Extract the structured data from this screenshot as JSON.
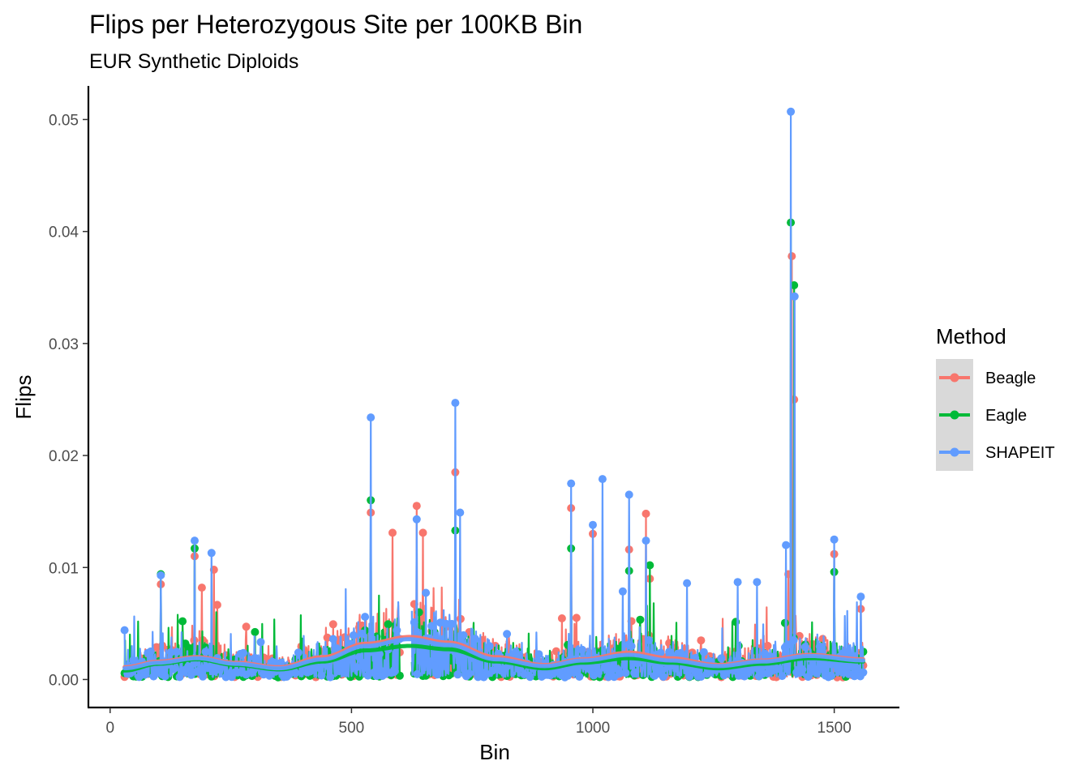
{
  "chart_data": {
    "type": "line",
    "title": "Flips per Heterozygous Site per 100KB Bin",
    "subtitle": "EUR Synthetic Diploids",
    "xlabel": "Bin",
    "ylabel": "Flips",
    "xlim": [
      -45,
      1635
    ],
    "ylim": [
      -0.0025,
      0.053
    ],
    "x_ticks": [
      0,
      500,
      1000,
      1500
    ],
    "y_ticks": [
      0.0,
      0.01,
      0.02,
      0.03,
      0.04,
      0.05
    ],
    "x_tick_labels": [
      "0",
      "500",
      "1000",
      "1500"
    ],
    "y_tick_labels": [
      "0.00",
      "0.01",
      "0.02",
      "0.03",
      "0.04",
      "0.05"
    ],
    "grid": false,
    "legend": {
      "title": "Method",
      "position": "right",
      "entries": [
        "Beagle",
        "Eagle",
        "SHAPEIT"
      ]
    },
    "x_range": [
      30,
      1560
    ],
    "gap_range": [
      600,
      625
    ],
    "notes": "Each series is a dense per-bin line+point trace with a smoothed trend line. Notable peaks listed below.",
    "series": [
      {
        "name": "Beagle",
        "color": "#F8766D",
        "peaks": [
          {
            "x": 105,
            "y": 0.0085
          },
          {
            "x": 175,
            "y": 0.011
          },
          {
            "x": 190,
            "y": 0.0082
          },
          {
            "x": 215,
            "y": 0.0098
          },
          {
            "x": 540,
            "y": 0.0149
          },
          {
            "x": 585,
            "y": 0.0131
          },
          {
            "x": 635,
            "y": 0.0155
          },
          {
            "x": 648,
            "y": 0.0131
          },
          {
            "x": 715,
            "y": 0.0185
          },
          {
            "x": 955,
            "y": 0.0153
          },
          {
            "x": 1000,
            "y": 0.013
          },
          {
            "x": 1075,
            "y": 0.0116
          },
          {
            "x": 1110,
            "y": 0.0148
          },
          {
            "x": 1118,
            "y": 0.009
          },
          {
            "x": 1405,
            "y": 0.0094
          },
          {
            "x": 1412,
            "y": 0.0378
          },
          {
            "x": 1417,
            "y": 0.025
          },
          {
            "x": 1500,
            "y": 0.0112
          },
          {
            "x": 1555,
            "y": 0.0063
          }
        ],
        "smooth": [
          {
            "x": 30,
            "y": 0.0011
          },
          {
            "x": 100,
            "y": 0.0016
          },
          {
            "x": 180,
            "y": 0.002
          },
          {
            "x": 260,
            "y": 0.0015
          },
          {
            "x": 350,
            "y": 0.0011
          },
          {
            "x": 440,
            "y": 0.002
          },
          {
            "x": 530,
            "y": 0.0032
          },
          {
            "x": 620,
            "y": 0.0038
          },
          {
            "x": 700,
            "y": 0.0033
          },
          {
            "x": 800,
            "y": 0.002
          },
          {
            "x": 900,
            "y": 0.0013
          },
          {
            "x": 980,
            "y": 0.0018
          },
          {
            "x": 1075,
            "y": 0.0024
          },
          {
            "x": 1160,
            "y": 0.0019
          },
          {
            "x": 1260,
            "y": 0.0013
          },
          {
            "x": 1350,
            "y": 0.0017
          },
          {
            "x": 1450,
            "y": 0.0022
          },
          {
            "x": 1560,
            "y": 0.0018
          }
        ]
      },
      {
        "name": "Eagle",
        "color": "#00BA38",
        "peaks": [
          {
            "x": 105,
            "y": 0.0094
          },
          {
            "x": 175,
            "y": 0.0117
          },
          {
            "x": 540,
            "y": 0.016
          },
          {
            "x": 640,
            "y": 0.006
          },
          {
            "x": 715,
            "y": 0.0133
          },
          {
            "x": 955,
            "y": 0.0117
          },
          {
            "x": 1075,
            "y": 0.0097
          },
          {
            "x": 1118,
            "y": 0.0102
          },
          {
            "x": 1410,
            "y": 0.0408
          },
          {
            "x": 1417,
            "y": 0.0352
          },
          {
            "x": 1500,
            "y": 0.0096
          }
        ],
        "smooth": [
          {
            "x": 30,
            "y": 0.0008
          },
          {
            "x": 100,
            "y": 0.0014
          },
          {
            "x": 180,
            "y": 0.0018
          },
          {
            "x": 260,
            "y": 0.0013
          },
          {
            "x": 350,
            "y": 0.0009
          },
          {
            "x": 440,
            "y": 0.0016
          },
          {
            "x": 530,
            "y": 0.0026
          },
          {
            "x": 620,
            "y": 0.003
          },
          {
            "x": 700,
            "y": 0.0027
          },
          {
            "x": 800,
            "y": 0.0016
          },
          {
            "x": 900,
            "y": 0.001
          },
          {
            "x": 980,
            "y": 0.0015
          },
          {
            "x": 1075,
            "y": 0.0019
          },
          {
            "x": 1160,
            "y": 0.0015
          },
          {
            "x": 1260,
            "y": 0.001
          },
          {
            "x": 1350,
            "y": 0.0014
          },
          {
            "x": 1450,
            "y": 0.0019
          },
          {
            "x": 1560,
            "y": 0.0016
          }
        ]
      },
      {
        "name": "SHAPEIT",
        "color": "#619CFF",
        "peaks": [
          {
            "x": 30,
            "y": 0.0044
          },
          {
            "x": 105,
            "y": 0.0093
          },
          {
            "x": 175,
            "y": 0.0124
          },
          {
            "x": 210,
            "y": 0.0113
          },
          {
            "x": 540,
            "y": 0.0234
          },
          {
            "x": 635,
            "y": 0.0143
          },
          {
            "x": 715,
            "y": 0.0247
          },
          {
            "x": 725,
            "y": 0.0149
          },
          {
            "x": 955,
            "y": 0.0175
          },
          {
            "x": 1000,
            "y": 0.0138
          },
          {
            "x": 1020,
            "y": 0.0179
          },
          {
            "x": 1075,
            "y": 0.0165
          },
          {
            "x": 1110,
            "y": 0.0124
          },
          {
            "x": 1195,
            "y": 0.0086
          },
          {
            "x": 1300,
            "y": 0.0087
          },
          {
            "x": 1340,
            "y": 0.0087
          },
          {
            "x": 1400,
            "y": 0.012
          },
          {
            "x": 1410,
            "y": 0.0507
          },
          {
            "x": 1418,
            "y": 0.0342
          },
          {
            "x": 1500,
            "y": 0.0125
          },
          {
            "x": 1555,
            "y": 0.0074
          }
        ],
        "smooth": [
          {
            "x": 30,
            "y": 0.001
          },
          {
            "x": 100,
            "y": 0.0015
          },
          {
            "x": 180,
            "y": 0.0019
          },
          {
            "x": 260,
            "y": 0.0014
          },
          {
            "x": 350,
            "y": 0.001
          },
          {
            "x": 440,
            "y": 0.0018
          },
          {
            "x": 530,
            "y": 0.003
          },
          {
            "x": 620,
            "y": 0.0036
          },
          {
            "x": 700,
            "y": 0.0031
          },
          {
            "x": 800,
            "y": 0.0018
          },
          {
            "x": 900,
            "y": 0.0012
          },
          {
            "x": 980,
            "y": 0.0017
          },
          {
            "x": 1075,
            "y": 0.0022
          },
          {
            "x": 1160,
            "y": 0.0017
          },
          {
            "x": 1260,
            "y": 0.0012
          },
          {
            "x": 1350,
            "y": 0.0016
          },
          {
            "x": 1450,
            "y": 0.0021
          },
          {
            "x": 1560,
            "y": 0.0017
          }
        ]
      }
    ]
  }
}
